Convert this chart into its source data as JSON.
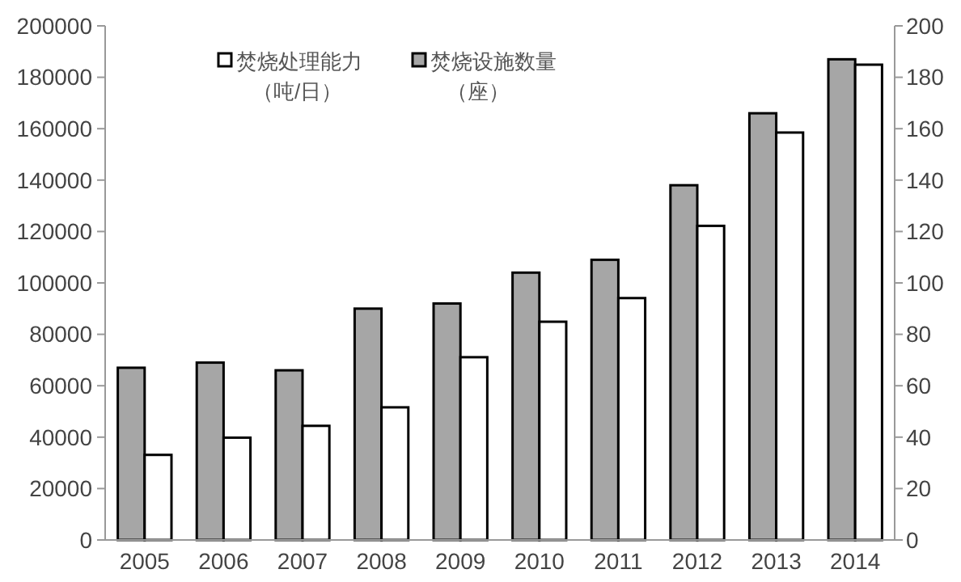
{
  "chart_data": {
    "type": "bar",
    "categories": [
      "2005",
      "2006",
      "2007",
      "2008",
      "2009",
      "2010",
      "2011",
      "2012",
      "2013",
      "2014"
    ],
    "series": [
      {
        "name": "焚烧设施数量（座）",
        "color": "#a6a6a6",
        "axis": "y2",
        "values": [
          67,
          69,
          66,
          90,
          92,
          104,
          109,
          138,
          166,
          187
        ]
      },
      {
        "name": "焚烧处理能力（吨/日）",
        "color": "#ffffff",
        "values": [
          33100,
          39800,
          44400,
          51600,
          71100,
          84900,
          94100,
          122200,
          158500,
          184900
        ]
      }
    ],
    "ylim": [
      0,
      200000
    ],
    "yticks": [
      0,
      20000,
      40000,
      60000,
      80000,
      100000,
      120000,
      140000,
      160000,
      180000,
      200000
    ],
    "y2lim": [
      0,
      200
    ],
    "y2ticks": [
      0,
      20,
      40,
      60,
      80,
      100,
      120,
      140,
      160,
      180,
      200
    ],
    "grid": false,
    "legend": "top"
  }
}
